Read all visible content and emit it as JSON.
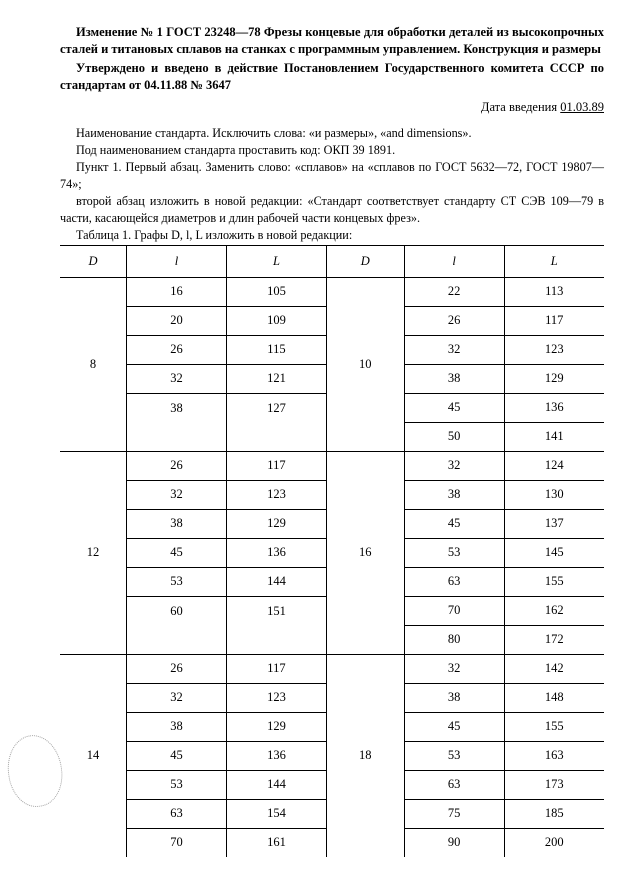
{
  "heading": {
    "line1": "Изменение № 1 ГОСТ 23248—78 Фрезы концевые для обработки деталей из высокопрочных сталей и титановых сплавов на станках с программным управлением. Конструкция и размеры",
    "line2": "Утверждено и введено в действие Постановлением Государственного комитета СССР по стандартам от 04.11.88 № 3647",
    "date_label": "Дата введения",
    "date_value": "01.03.89"
  },
  "body": {
    "p1": "Наименование стандарта. Исключить слова: «и размеры», «and dimensions».",
    "p2": "Под наименованием стандарта проставить код: ОКП 39 1891.",
    "p3": "Пункт 1. Первый абзац. Заменить слово: «сплавов» на «сплавов по ГОСТ 5632—72, ГОСТ 19807—74»;",
    "p4": "второй абзац изложить в новой редакции: «Стандарт соответствует стандарту СТ СЭВ 109—79 в части, касающейся диаметров и длин рабочей части концевых фрез».",
    "caption": "Таблица 1. Графы D, l, L изложить в новой редакции:"
  },
  "table": {
    "headers": [
      "D",
      "l",
      "L",
      "D",
      "l",
      "L"
    ],
    "blocks": [
      {
        "leftD": "8",
        "rightD": "10",
        "left": [
          [
            "16",
            "105"
          ],
          [
            "20",
            "109"
          ],
          [
            "26",
            "115"
          ],
          [
            "32",
            "121"
          ],
          [
            "38",
            "127"
          ]
        ],
        "right": [
          [
            "22",
            "113"
          ],
          [
            "26",
            "117"
          ],
          [
            "32",
            "123"
          ],
          [
            "38",
            "129"
          ],
          [
            "45",
            "136"
          ],
          [
            "50",
            "141"
          ]
        ]
      },
      {
        "leftD": "12",
        "rightD": "16",
        "left": [
          [
            "26",
            "117"
          ],
          [
            "32",
            "123"
          ],
          [
            "38",
            "129"
          ],
          [
            "45",
            "136"
          ],
          [
            "53",
            "144"
          ],
          [
            "60",
            "151"
          ]
        ],
        "right": [
          [
            "32",
            "124"
          ],
          [
            "38",
            "130"
          ],
          [
            "45",
            "137"
          ],
          [
            "53",
            "145"
          ],
          [
            "63",
            "155"
          ],
          [
            "70",
            "162"
          ],
          [
            "80",
            "172"
          ]
        ]
      },
      {
        "leftD": "14",
        "rightD": "18",
        "left": [
          [
            "26",
            "117"
          ],
          [
            "32",
            "123"
          ],
          [
            "38",
            "129"
          ],
          [
            "45",
            "136"
          ],
          [
            "53",
            "144"
          ],
          [
            "63",
            "154"
          ],
          [
            "70",
            "161"
          ]
        ],
        "right": [
          [
            "32",
            "142"
          ],
          [
            "38",
            "148"
          ],
          [
            "45",
            "155"
          ],
          [
            "53",
            "163"
          ],
          [
            "63",
            "173"
          ],
          [
            "75",
            "185"
          ],
          [
            "90",
            "200"
          ]
        ]
      }
    ]
  },
  "style": {
    "col_widths_pct": [
      12,
      18,
      18,
      14,
      18,
      18
    ],
    "font_family": "Times New Roman",
    "text_color": "#000000",
    "bg_color": "#ffffff"
  }
}
